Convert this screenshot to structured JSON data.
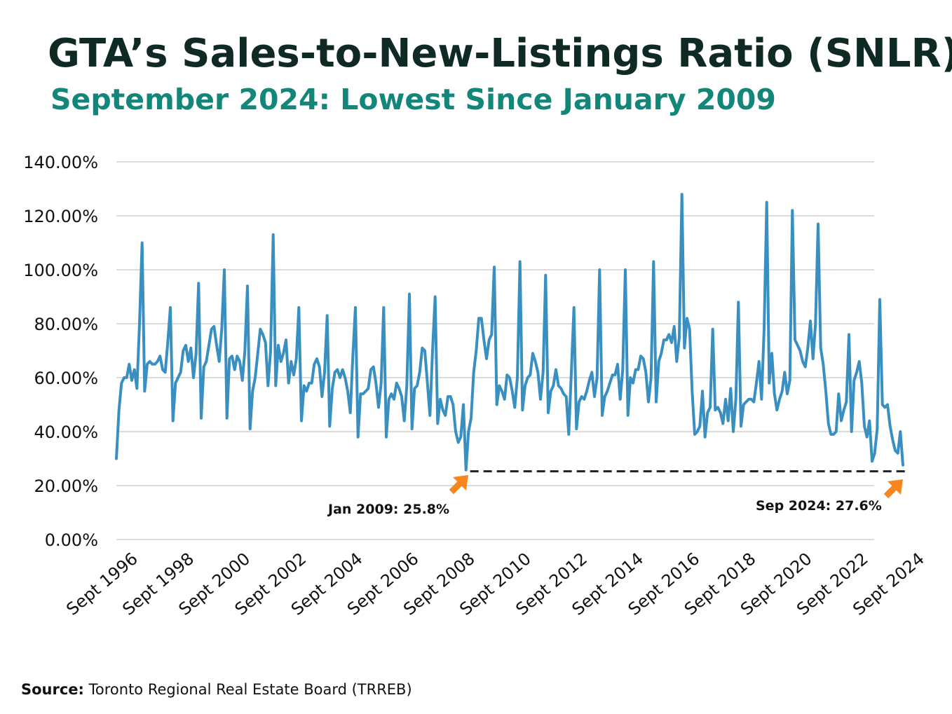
{
  "header": {
    "title": "GTA’s Sales-to-New-Listings Ratio (SNLR)",
    "subtitle": "September 2024: Lowest Since January 2009"
  },
  "source": {
    "label": "Source:",
    "text": "Toronto Regional Real Estate Board (TRREB)"
  },
  "colors": {
    "title": "#0f2a24",
    "subtitle": "#13867a",
    "line": "#3a8fc1",
    "grid": "#c8c8c8",
    "arrow": "#f7861c",
    "dashed": "#1f1f2e"
  },
  "chart_data": {
    "type": "line",
    "x_start": "Sept 1996",
    "x_end": "Sept 2024",
    "frequency": "monthly",
    "ylim": [
      0,
      140
    ],
    "yticks": [
      "0.00%",
      "20.00%",
      "40.00%",
      "60.00%",
      "80.00%",
      "100.00%",
      "120.00%",
      "140.00%"
    ],
    "xticks": [
      "Sept 1996",
      "Sept 1998",
      "Sept 2000",
      "Sept 2002",
      "Sept 2004",
      "Sept 2006",
      "Sept 2008",
      "Sept 2010",
      "Sept 2012",
      "Sept 2014",
      "Sept 2016",
      "Sept 2018",
      "Sept 2020",
      "Sept 2022",
      "Sept 2024"
    ],
    "grid": true,
    "series": [
      {
        "values": [
          30,
          48,
          58,
          60,
          60,
          65,
          59,
          63,
          56,
          80,
          110,
          55,
          65,
          66,
          65,
          65,
          66,
          68,
          63,
          62,
          73,
          86,
          44,
          58,
          60,
          62,
          70,
          72,
          66,
          71,
          60,
          69,
          95,
          45,
          64,
          66,
          72,
          78,
          79,
          72,
          66,
          78,
          100,
          45,
          67,
          68,
          63,
          68,
          66,
          59,
          70,
          94,
          41,
          55,
          60,
          69,
          78,
          76,
          73,
          57,
          70,
          113,
          57,
          72,
          66,
          69,
          74,
          58,
          66,
          61,
          67,
          86,
          44,
          57,
          55,
          58,
          58,
          65,
          67,
          64,
          53,
          62,
          83,
          42,
          56,
          62,
          63,
          60,
          63,
          60,
          55,
          47,
          68,
          86,
          38,
          54,
          54,
          55,
          56,
          63,
          64,
          58,
          49,
          58,
          86,
          38,
          52,
          54,
          52,
          58,
          56,
          53,
          44,
          57,
          91,
          41,
          56,
          57,
          62,
          71,
          70,
          58,
          46,
          70,
          90,
          43,
          52,
          48,
          46,
          53,
          53,
          50,
          40,
          36,
          38,
          50,
          25.8,
          40,
          45,
          62,
          70,
          82,
          82,
          74,
          67,
          74,
          76,
          101,
          50,
          57,
          55,
          52,
          61,
          60,
          55,
          49,
          60,
          103,
          48,
          57,
          60,
          61,
          69,
          66,
          62,
          52,
          62,
          98,
          47,
          55,
          57,
          63,
          57,
          56,
          54,
          53,
          39,
          62,
          86,
          41,
          51,
          53,
          52,
          55,
          59,
          62,
          53,
          60,
          100,
          46,
          53,
          55,
          58,
          61,
          61,
          65,
          52,
          63,
          100,
          46,
          60,
          58,
          63,
          63,
          68,
          67,
          62,
          51,
          60,
          103,
          51,
          66,
          69,
          74,
          74,
          76,
          73,
          79,
          66,
          75,
          128,
          71,
          82,
          78,
          55,
          39,
          40,
          42,
          55,
          38,
          47,
          49,
          78,
          48,
          49,
          47,
          43,
          52,
          44,
          56,
          40,
          52,
          88,
          42,
          50,
          51,
          52,
          52,
          51,
          58,
          66,
          52,
          78,
          125,
          58,
          69,
          54,
          48,
          52,
          55,
          62,
          54,
          59,
          122,
          74,
          72,
          70,
          66,
          64,
          71,
          81,
          67,
          80,
          117,
          71,
          65,
          55,
          43,
          39,
          39,
          40,
          54,
          44,
          48,
          51,
          76,
          40,
          59,
          62,
          66,
          58,
          42,
          38,
          44,
          29,
          32,
          41,
          89,
          50,
          49,
          50,
          42,
          37,
          33,
          32,
          40,
          27.6
        ]
      }
    ],
    "annotations": [
      {
        "text": "Jan 2009: 25.8%",
        "x": "Jan 2009",
        "y": 25.8
      },
      {
        "text": "Sep 2024: 27.6%",
        "x": "Sep 2024",
        "y": 27.6
      }
    ],
    "reference_line": {
      "y": 25.8,
      "from": "Jan 2009",
      "to": "Sep 2024",
      "style": "dashed"
    }
  }
}
